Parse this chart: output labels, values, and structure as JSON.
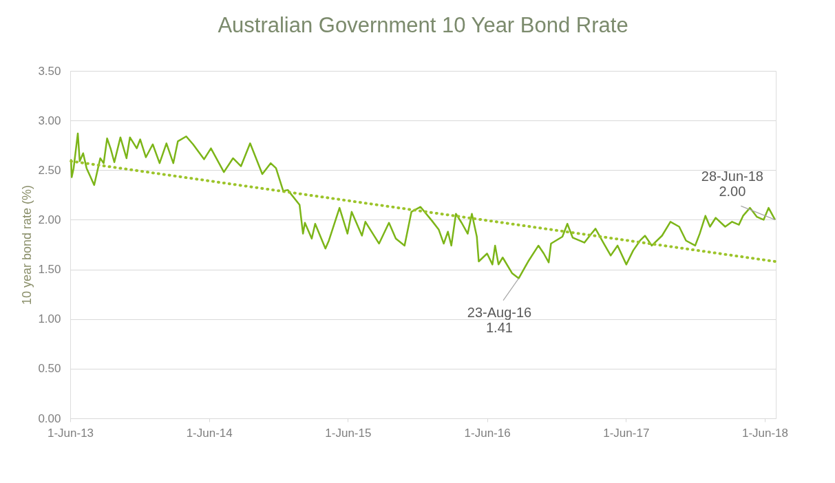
{
  "chart_data": {
    "type": "line",
    "title": "Australian Government 10 Year Bond Rrate",
    "ylabel": "10 year bond rate (%)",
    "xlim": [
      "2013-06-01",
      "2018-06-30"
    ],
    "xticks": [
      {
        "value": "2013-06-01",
        "label": "1-Jun-13"
      },
      {
        "value": "2014-06-01",
        "label": "1-Jun-14"
      },
      {
        "value": "2015-06-01",
        "label": "1-Jun-15"
      },
      {
        "value": "2016-06-01",
        "label": "1-Jun-16"
      },
      {
        "value": "2017-06-01",
        "label": "1-Jun-17"
      },
      {
        "value": "2018-06-01",
        "label": "1-Jun-18"
      }
    ],
    "ylim": [
      0,
      3.5
    ],
    "yticks": [
      {
        "value": 0,
        "label": "0.00"
      },
      {
        "value": 0.5,
        "label": "0.50"
      },
      {
        "value": 1,
        "label": "1.00"
      },
      {
        "value": 1.5,
        "label": "1.50"
      },
      {
        "value": 2,
        "label": "2.00"
      },
      {
        "value": 2.5,
        "label": "2.50"
      },
      {
        "value": 3,
        "label": "3.00"
      },
      {
        "value": 3.5,
        "label": "3.50"
      }
    ],
    "grid": "y",
    "series": [
      {
        "color": "#7cb518",
        "line_style": "solid",
        "x": [
          "2013-06-03",
          "2013-06-05",
          "2013-06-10",
          "2013-06-21",
          "2013-06-26",
          "2013-07-05",
          "2013-07-14",
          "2013-08-03",
          "2013-08-19",
          "2013-08-28",
          "2013-09-06",
          "2013-09-15",
          "2013-09-25",
          "2013-10-11",
          "2013-10-27",
          "2013-11-05",
          "2013-11-23",
          "2013-12-02",
          "2013-12-17",
          "2014-01-04",
          "2014-01-22",
          "2014-02-09",
          "2014-02-27",
          "2014-03-11",
          "2014-04-02",
          "2014-04-20",
          "2014-05-19",
          "2014-06-06",
          "2014-07-10",
          "2014-08-03",
          "2014-08-24",
          "2014-09-17",
          "2014-10-19",
          "2014-11-10",
          "2014-11-24",
          "2014-12-13",
          "2014-12-25",
          "2015-01-25",
          "2015-02-03",
          "2015-02-08",
          "2015-02-26",
          "2015-03-07",
          "2015-04-03",
          "2015-04-12",
          "2015-05-10",
          "2015-05-31",
          "2015-06-11",
          "2015-07-08",
          "2015-07-17",
          "2015-08-22",
          "2015-09-17",
          "2015-10-05",
          "2015-10-28",
          "2015-11-15",
          "2015-12-09",
          "2016-01-08",
          "2016-01-26",
          "2016-02-08",
          "2016-02-19",
          "2016-02-28",
          "2016-03-11",
          "2016-03-26",
          "2016-04-11",
          "2016-04-22",
          "2016-05-05",
          "2016-05-10",
          "2016-06-01",
          "2016-06-15",
          "2016-06-22",
          "2016-07-01",
          "2016-07-12",
          "2016-08-06",
          "2016-08-23",
          "2016-09-17",
          "2016-10-14",
          "2016-10-28",
          "2016-11-10",
          "2016-11-16",
          "2016-12-16",
          "2016-12-29",
          "2017-01-12",
          "2017-02-12",
          "2017-02-26",
          "2017-03-13",
          "2017-04-04",
          "2017-04-22",
          "2017-05-10",
          "2017-06-02",
          "2017-06-20",
          "2017-07-08",
          "2017-07-21",
          "2017-08-08",
          "2017-09-04",
          "2017-09-26",
          "2017-10-19",
          "2017-11-06",
          "2017-11-30",
          "2017-12-12",
          "2017-12-27",
          "2018-01-08",
          "2018-01-23",
          "2018-02-17",
          "2018-03-07",
          "2018-03-25",
          "2018-04-05",
          "2018-04-23",
          "2018-05-11",
          "2018-05-29",
          "2018-06-11",
          "2018-06-28"
        ],
        "values": [
          2.61,
          2.43,
          2.52,
          2.87,
          2.59,
          2.67,
          2.52,
          2.35,
          2.62,
          2.57,
          2.82,
          2.72,
          2.58,
          2.83,
          2.62,
          2.83,
          2.72,
          2.81,
          2.63,
          2.76,
          2.57,
          2.77,
          2.57,
          2.79,
          2.84,
          2.76,
          2.61,
          2.72,
          2.48,
          2.62,
          2.54,
          2.77,
          2.46,
          2.57,
          2.52,
          2.29,
          2.3,
          2.15,
          1.86,
          1.97,
          1.81,
          1.96,
          1.71,
          1.79,
          2.12,
          1.86,
          2.08,
          1.84,
          1.98,
          1.76,
          1.97,
          1.81,
          1.74,
          2.08,
          2.13,
          1.99,
          1.9,
          1.76,
          1.88,
          1.74,
          2.06,
          1.97,
          1.86,
          2.06,
          1.83,
          1.58,
          1.66,
          1.55,
          1.74,
          1.55,
          1.62,
          1.46,
          1.41,
          1.58,
          1.74,
          1.66,
          1.57,
          1.76,
          1.83,
          1.96,
          1.82,
          1.77,
          1.84,
          1.91,
          1.76,
          1.64,
          1.74,
          1.55,
          1.69,
          1.79,
          1.84,
          1.74,
          1.84,
          1.98,
          1.93,
          1.79,
          1.74,
          1.86,
          2.04,
          1.93,
          2.02,
          1.93,
          1.98,
          1.95,
          2.04,
          2.12,
          2.03,
          2.0,
          2.12,
          2.0
        ]
      },
      {
        "color": "#9cc42a",
        "line_style": "dotted",
        "x": [
          "2013-06-03",
          "2018-06-28"
        ],
        "values": [
          2.59,
          1.58
        ]
      }
    ],
    "annotations": [
      {
        "text": "23-Aug-16\n1.41",
        "x": "2016-08-23",
        "y": 1.41
      },
      {
        "text": "28-Jun-18\n2.00",
        "x": "2018-06-28",
        "y": 2.0
      }
    ]
  }
}
